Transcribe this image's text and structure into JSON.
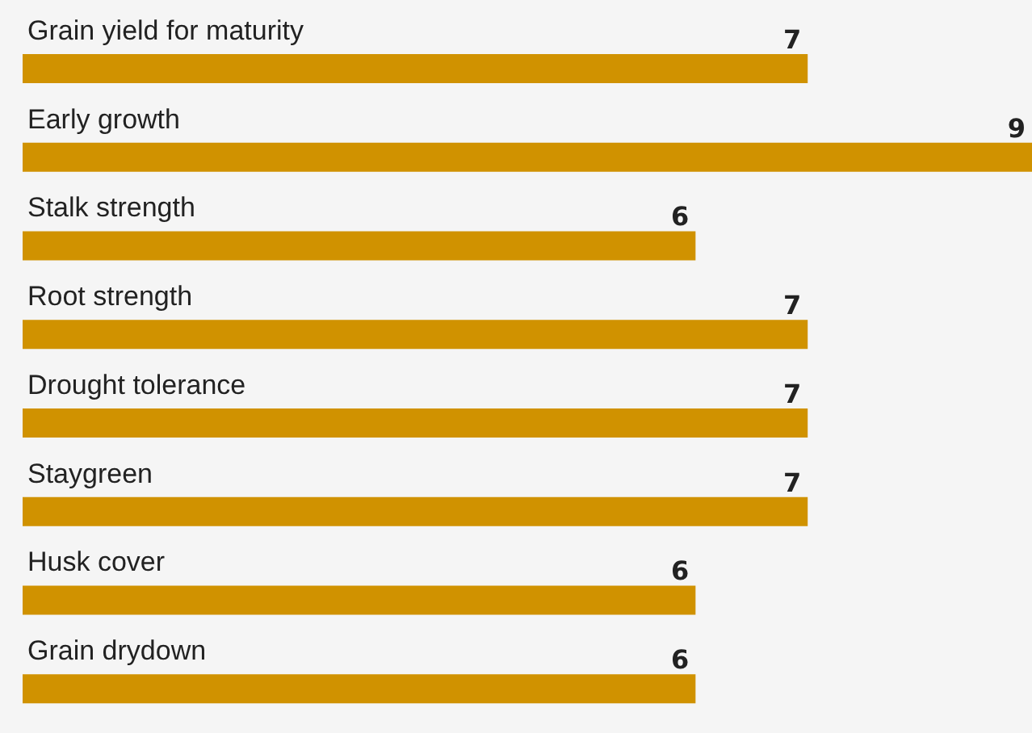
{
  "chart_data": {
    "type": "bar",
    "orientation": "horizontal",
    "categories": [
      "Grain yield for maturity",
      "Early growth",
      "Stalk strength",
      "Root strength",
      "Drought tolerance",
      "Staygreen",
      "Husk cover",
      "Grain drydown"
    ],
    "values": [
      7,
      9,
      6,
      7,
      7,
      7,
      6,
      6
    ],
    "color": "#d09200",
    "data_labels": true
  }
}
